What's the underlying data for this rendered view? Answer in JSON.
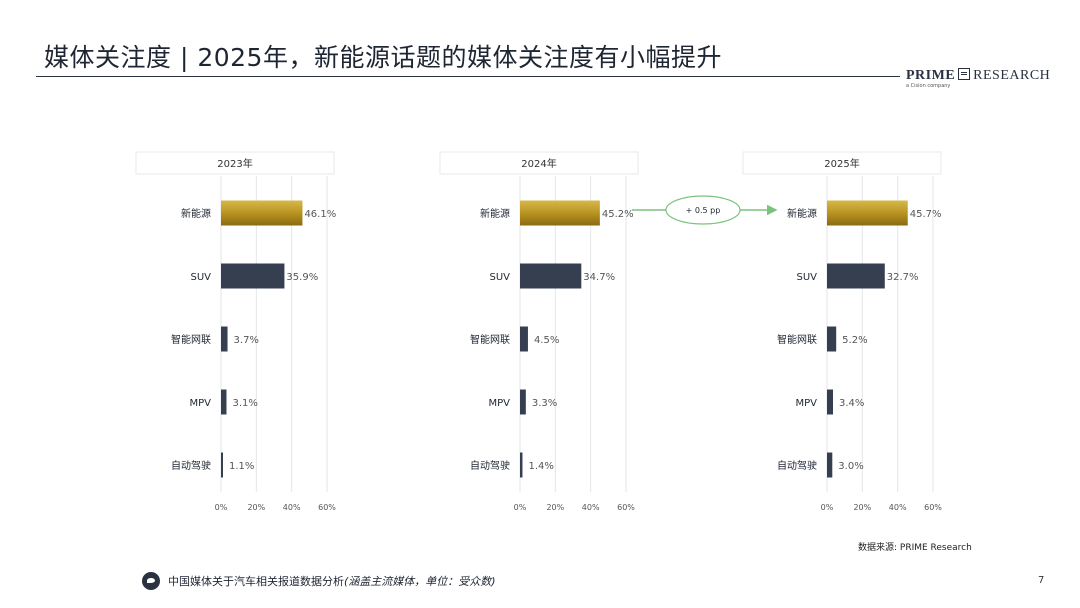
{
  "header": {
    "title": "媒体关注度 | 2025年，新能源话题的媒体关注度有小幅提升",
    "brand_bold": "PRIME",
    "brand_rest": "RESEARCH",
    "brand_tagline": "a Cision company"
  },
  "chart_data": {
    "type": "bar",
    "orientation": "horizontal",
    "categories": [
      "新能源",
      "SUV",
      "智能网联",
      "MPV",
      "自动驾驶"
    ],
    "xlim": [
      0,
      60
    ],
    "xticks": [
      "0%",
      "20%",
      "40%",
      "60%"
    ],
    "grid": true,
    "colors": {
      "highlight": "#b5901e",
      "default": "#363f50"
    },
    "panels": [
      {
        "title": "2023年",
        "values": [
          46.1,
          35.9,
          3.7,
          3.1,
          1.1
        ],
        "labels": [
          "46.1%",
          "35.9%",
          "3.7%",
          "3.1%",
          "1.1%"
        ]
      },
      {
        "title": "2024年",
        "values": [
          45.2,
          34.7,
          4.5,
          3.3,
          1.4
        ],
        "labels": [
          "45.2%",
          "34.7%",
          "4.5%",
          "3.3%",
          "1.4%"
        ]
      },
      {
        "title": "2025年",
        "values": [
          45.7,
          32.7,
          5.2,
          3.4,
          3.0
        ],
        "labels": [
          "45.7%",
          "32.7%",
          "5.2%",
          "3.4%",
          "3.0%"
        ]
      }
    ],
    "annotation": {
      "text": "+ 0.5 pp",
      "from_panel": 1,
      "to_panel": 2,
      "category": "新能源"
    }
  },
  "source": "数据来源: PRIME Research",
  "footer": {
    "text": "中国媒体关于汽车相关报道数据分析",
    "note": "(涵盖主流媒体，单位：受众数)"
  },
  "page_number": "7"
}
